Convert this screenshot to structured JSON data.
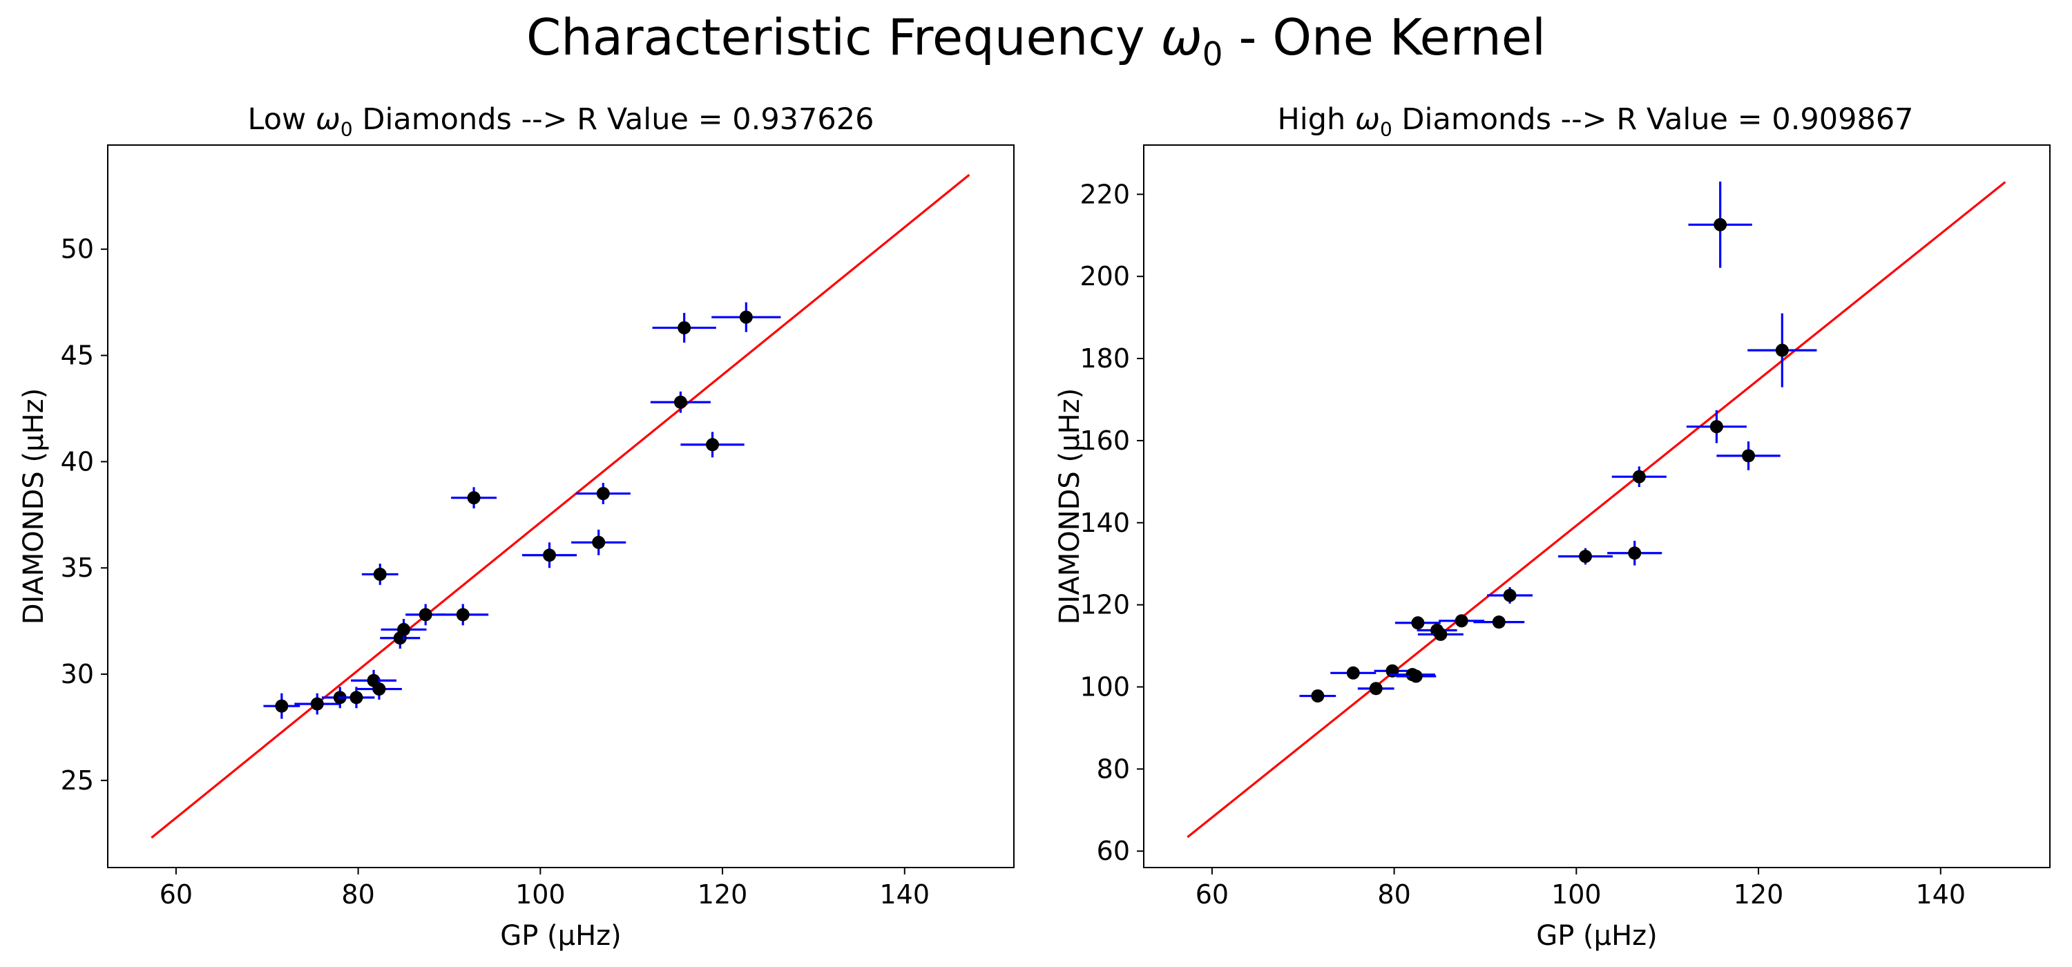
{
  "figure": {
    "title_prefix": "Characteristic Frequency ",
    "title_symbol": "ω",
    "title_sub": "0",
    "title_suffix": " - One Kernel"
  },
  "chart_data": [
    {
      "type": "scatter",
      "title_prefix": "Low ",
      "title_symbol": "ω",
      "title_sub": "0",
      "title_suffix": " Diamonds --> R Value = 0.937626",
      "xlabel": "GP (μHz)",
      "ylabel": "DIAMONDS (μHz)",
      "xlim": [
        52.5,
        152
      ],
      "ylim": [
        20.9,
        54.9
      ],
      "xticks": [
        60,
        80,
        100,
        120,
        140
      ],
      "yticks": [
        25,
        30,
        35,
        40,
        45,
        50
      ],
      "grid": false,
      "fit_line": {
        "x": [
          57.3,
          147.1
        ],
        "y": [
          22.3,
          53.5
        ],
        "color": "#ff0000"
      },
      "errorbar_color": "#0000ff",
      "marker_color": "#000000",
      "points": [
        {
          "x": 71.6,
          "y": 28.5,
          "xerr": 2.0,
          "yerr": 0.6
        },
        {
          "x": 75.5,
          "y": 28.6,
          "xerr": 2.5,
          "yerr": 0.5
        },
        {
          "x": 78.0,
          "y": 28.9,
          "xerr": 2.0,
          "yerr": 0.5
        },
        {
          "x": 79.8,
          "y": 28.9,
          "xerr": 2.0,
          "yerr": 0.5
        },
        {
          "x": 81.7,
          "y": 29.7,
          "xerr": 2.5,
          "yerr": 0.5
        },
        {
          "x": 82.3,
          "y": 29.3,
          "xerr": 2.5,
          "yerr": 0.5
        },
        {
          "x": 82.4,
          "y": 34.7,
          "xerr": 2.0,
          "yerr": 0.5
        },
        {
          "x": 84.6,
          "y": 31.7,
          "xerr": 2.2,
          "yerr": 0.5
        },
        {
          "x": 85.0,
          "y": 32.1,
          "xerr": 2.5,
          "yerr": 0.5
        },
        {
          "x": 87.4,
          "y": 32.8,
          "xerr": 2.2,
          "yerr": 0.5
        },
        {
          "x": 91.5,
          "y": 32.8,
          "xerr": 2.8,
          "yerr": 0.5
        },
        {
          "x": 92.7,
          "y": 38.3,
          "xerr": 2.5,
          "yerr": 0.5
        },
        {
          "x": 101.0,
          "y": 35.6,
          "xerr": 3.0,
          "yerr": 0.6
        },
        {
          "x": 106.4,
          "y": 36.2,
          "xerr": 3.0,
          "yerr": 0.6
        },
        {
          "x": 106.9,
          "y": 38.5,
          "xerr": 3.0,
          "yerr": 0.5
        },
        {
          "x": 115.4,
          "y": 42.8,
          "xerr": 3.3,
          "yerr": 0.5
        },
        {
          "x": 115.8,
          "y": 46.3,
          "xerr": 3.5,
          "yerr": 0.7
        },
        {
          "x": 118.9,
          "y": 40.8,
          "xerr": 3.5,
          "yerr": 0.6
        },
        {
          "x": 122.6,
          "y": 46.8,
          "xerr": 3.8,
          "yerr": 0.7
        }
      ]
    },
    {
      "type": "scatter",
      "title_prefix": "High ",
      "title_symbol": "ω",
      "title_sub": "0",
      "title_suffix": " Diamonds --> R Value = 0.909867",
      "xlabel": "GP (μHz)",
      "ylabel": "DIAMONDS (μHz)",
      "xlim": [
        52.5,
        152
      ],
      "ylim": [
        56,
        232
      ],
      "xticks": [
        60,
        80,
        100,
        120,
        140
      ],
      "yticks": [
        60,
        80,
        100,
        120,
        140,
        160,
        180,
        200,
        220
      ],
      "grid": false,
      "fit_line": {
        "x": [
          57.3,
          147.1
        ],
        "y": [
          63.4,
          223.0
        ],
        "color": "#ff0000"
      },
      "errorbar_color": "#0000ff",
      "marker_color": "#000000",
      "points": [
        {
          "x": 71.6,
          "y": 97.8,
          "xerr": 2.0,
          "yerr": 1.5
        },
        {
          "x": 75.5,
          "y": 103.4,
          "xerr": 2.5,
          "yerr": 1.5
        },
        {
          "x": 78.0,
          "y": 99.6,
          "xerr": 2.0,
          "yerr": 1.5
        },
        {
          "x": 79.8,
          "y": 103.9,
          "xerr": 2.0,
          "yerr": 1.5
        },
        {
          "x": 82.0,
          "y": 103.0,
          "xerr": 2.5,
          "yerr": 1.5
        },
        {
          "x": 82.4,
          "y": 102.6,
          "xerr": 2.2,
          "yerr": 1.5
        },
        {
          "x": 82.6,
          "y": 115.6,
          "xerr": 2.5,
          "yerr": 1.5
        },
        {
          "x": 84.7,
          "y": 113.8,
          "xerr": 2.2,
          "yerr": 1.5
        },
        {
          "x": 85.1,
          "y": 112.8,
          "xerr": 2.5,
          "yerr": 1.5
        },
        {
          "x": 87.4,
          "y": 116.1,
          "xerr": 2.5,
          "yerr": 1.5
        },
        {
          "x": 91.5,
          "y": 115.8,
          "xerr": 2.8,
          "yerr": 1.5
        },
        {
          "x": 92.7,
          "y": 122.3,
          "xerr": 2.5,
          "yerr": 2.0
        },
        {
          "x": 101.0,
          "y": 131.8,
          "xerr": 3.0,
          "yerr": 2.0
        },
        {
          "x": 106.4,
          "y": 132.6,
          "xerr": 3.0,
          "yerr": 3.0
        },
        {
          "x": 106.9,
          "y": 151.2,
          "xerr": 3.0,
          "yerr": 2.5
        },
        {
          "x": 115.4,
          "y": 163.4,
          "xerr": 3.3,
          "yerr": 4.0
        },
        {
          "x": 115.8,
          "y": 212.6,
          "xerr": 3.5,
          "yerr": 10.5
        },
        {
          "x": 118.9,
          "y": 156.3,
          "xerr": 3.5,
          "yerr": 3.5
        },
        {
          "x": 122.6,
          "y": 182.0,
          "xerr": 3.8,
          "yerr": 9.0
        }
      ]
    }
  ]
}
